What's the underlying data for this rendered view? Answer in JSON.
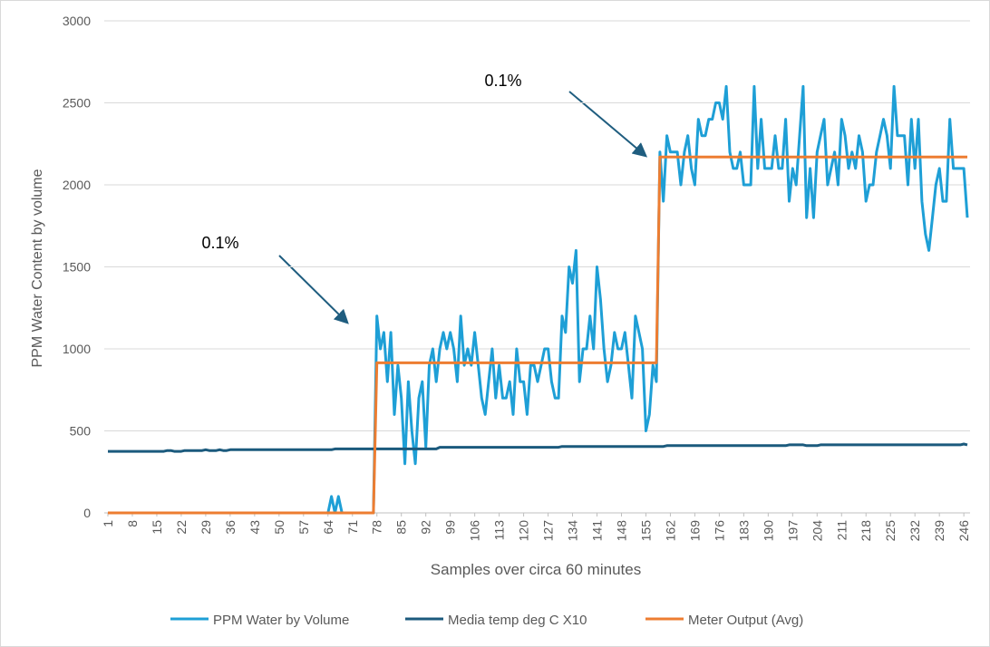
{
  "chart_data": {
    "type": "line",
    "x_label": "Samples over circa 60 minutes",
    "y_label": "PPM Water Content by volume",
    "xlim": [
      1,
      247
    ],
    "xticks": [
      1,
      8,
      15,
      22,
      29,
      36,
      43,
      50,
      57,
      64,
      71,
      78,
      85,
      92,
      99,
      106,
      113,
      120,
      127,
      134,
      141,
      148,
      155,
      162,
      169,
      176,
      183,
      190,
      197,
      204,
      211,
      218,
      225,
      232,
      239,
      246
    ],
    "ylim": [
      0,
      3000
    ],
    "yticks": [
      0,
      500,
      1000,
      1500,
      2000,
      2500,
      3000
    ],
    "grid": true,
    "legend": "bottom",
    "annotations": [
      {
        "text": "0.1%"
      },
      {
        "text": "0.1%"
      }
    ],
    "x": [
      1,
      2,
      3,
      4,
      5,
      6,
      7,
      8,
      9,
      10,
      11,
      12,
      13,
      14,
      15,
      16,
      17,
      18,
      19,
      20,
      21,
      22,
      23,
      24,
      25,
      26,
      27,
      28,
      29,
      30,
      31,
      32,
      33,
      34,
      35,
      36,
      37,
      38,
      39,
      40,
      41,
      42,
      43,
      44,
      45,
      46,
      47,
      48,
      49,
      50,
      51,
      52,
      53,
      54,
      55,
      56,
      57,
      58,
      59,
      60,
      61,
      62,
      63,
      64,
      65,
      66,
      67,
      68,
      69,
      70,
      71,
      72,
      73,
      74,
      75,
      76,
      77,
      78,
      79,
      80,
      81,
      82,
      83,
      84,
      85,
      86,
      87,
      88,
      89,
      90,
      91,
      92,
      93,
      94,
      95,
      96,
      97,
      98,
      99,
      100,
      101,
      102,
      103,
      104,
      105,
      106,
      107,
      108,
      109,
      110,
      111,
      112,
      113,
      114,
      115,
      116,
      117,
      118,
      119,
      120,
      121,
      122,
      123,
      124,
      125,
      126,
      127,
      128,
      129,
      130,
      131,
      132,
      133,
      134,
      135,
      136,
      137,
      138,
      139,
      140,
      141,
      142,
      143,
      144,
      145,
      146,
      147,
      148,
      149,
      150,
      151,
      152,
      153,
      154,
      155,
      156,
      157,
      158,
      159,
      160,
      161,
      162,
      163,
      164,
      165,
      166,
      167,
      168,
      169,
      170,
      171,
      172,
      173,
      174,
      175,
      176,
      177,
      178,
      179,
      180,
      181,
      182,
      183,
      184,
      185,
      186,
      187,
      188,
      189,
      190,
      191,
      192,
      193,
      194,
      195,
      196,
      197,
      198,
      199,
      200,
      201,
      202,
      203,
      204,
      205,
      206,
      207,
      208,
      209,
      210,
      211,
      212,
      213,
      214,
      215,
      216,
      217,
      218,
      219,
      220,
      221,
      222,
      223,
      224,
      225,
      226,
      227,
      228,
      229,
      230,
      231,
      232,
      233,
      234,
      235,
      236,
      237,
      238,
      239,
      240,
      241,
      242,
      243,
      244,
      245,
      246,
      247
    ],
    "series": [
      {
        "name": "PPM Water by Volume",
        "color": "#1e9fd6",
        "values": [
          0,
          0,
          0,
          0,
          0,
          0,
          0,
          0,
          0,
          0,
          0,
          0,
          0,
          0,
          0,
          0,
          0,
          0,
          0,
          0,
          0,
          0,
          0,
          0,
          0,
          0,
          0,
          0,
          0,
          0,
          0,
          0,
          0,
          0,
          0,
          0,
          0,
          0,
          0,
          0,
          0,
          0,
          0,
          0,
          0,
          0,
          0,
          0,
          0,
          0,
          0,
          0,
          0,
          0,
          0,
          0,
          0,
          0,
          0,
          0,
          0,
          0,
          0,
          0,
          100,
          0,
          100,
          0,
          0,
          0,
          0,
          0,
          0,
          0,
          0,
          0,
          0,
          1200,
          1000,
          1100,
          800,
          1100,
          600,
          900,
          700,
          300,
          800,
          500,
          300,
          700,
          800,
          400,
          900,
          1000,
          800,
          1000,
          1100,
          1000,
          1100,
          1000,
          800,
          1200,
          900,
          1000,
          900,
          1100,
          900,
          700,
          600,
          800,
          1000,
          700,
          900,
          700,
          700,
          800,
          600,
          1000,
          800,
          800,
          600,
          900,
          900,
          800,
          900,
          1000,
          1000,
          800,
          700,
          700,
          1200,
          1100,
          1500,
          1400,
          1600,
          800,
          1000,
          1000,
          1200,
          1000,
          1500,
          1300,
          1000,
          800,
          900,
          1100,
          1000,
          1000,
          1100,
          900,
          700,
          1200,
          1100,
          1000,
          500,
          600,
          900,
          800,
          2200,
          1900,
          2300,
          2200,
          2200,
          2200,
          2000,
          2200,
          2300,
          2100,
          2000,
          2400,
          2300,
          2300,
          2400,
          2400,
          2500,
          2500,
          2400,
          2600,
          2200,
          2100,
          2100,
          2200,
          2000,
          2000,
          2000,
          2600,
          2100,
          2400,
          2100,
          2100,
          2100,
          2300,
          2100,
          2100,
          2400,
          1900,
          2100,
          2000,
          2300,
          2600,
          1800,
          2100,
          1800,
          2200,
          2300,
          2400,
          2000,
          2100,
          2200,
          2000,
          2400,
          2300,
          2100,
          2200,
          2100,
          2300,
          2200,
          1900,
          2000,
          2000,
          2200,
          2300,
          2400,
          2300,
          2100,
          2600,
          2300,
          2300,
          2300,
          2000,
          2400,
          2100,
          2400,
          1900,
          1700,
          1600,
          1800,
          2000,
          2100,
          1900,
          1900,
          2400,
          2100,
          2100,
          2100,
          2100,
          1800
        ]
      },
      {
        "name": "Media temp deg C X10",
        "color": "#1b5a7d",
        "values": [
          375,
          375,
          375,
          375,
          375,
          375,
          375,
          375,
          375,
          375,
          375,
          375,
          375,
          375,
          375,
          375,
          375,
          380,
          380,
          375,
          375,
          375,
          380,
          380,
          380,
          380,
          380,
          380,
          385,
          380,
          380,
          380,
          385,
          380,
          380,
          385,
          385,
          385,
          385,
          385,
          385,
          385,
          385,
          385,
          385,
          385,
          385,
          385,
          385,
          385,
          385,
          385,
          385,
          385,
          385,
          385,
          385,
          385,
          385,
          385,
          385,
          385,
          385,
          385,
          385,
          390,
          390,
          390,
          390,
          390,
          390,
          390,
          390,
          390,
          390,
          390,
          390,
          390,
          390,
          390,
          390,
          390,
          390,
          390,
          390,
          390,
          390,
          390,
          390,
          390,
          390,
          390,
          390,
          390,
          390,
          400,
          400,
          400,
          400,
          400,
          400,
          400,
          400,
          400,
          400,
          400,
          400,
          400,
          400,
          400,
          400,
          400,
          400,
          400,
          400,
          400,
          400,
          400,
          400,
          400,
          400,
          400,
          400,
          400,
          400,
          400,
          400,
          400,
          400,
          400,
          405,
          405,
          405,
          405,
          405,
          405,
          405,
          405,
          405,
          405,
          405,
          405,
          405,
          405,
          405,
          405,
          405,
          405,
          405,
          405,
          405,
          405,
          405,
          405,
          405,
          405,
          405,
          405,
          405,
          405,
          410,
          410,
          410,
          410,
          410,
          410,
          410,
          410,
          410,
          410,
          410,
          410,
          410,
          410,
          410,
          410,
          410,
          410,
          410,
          410,
          410,
          410,
          410,
          410,
          410,
          410,
          410,
          410,
          410,
          410,
          410,
          410,
          410,
          410,
          410,
          415,
          415,
          415,
          415,
          415,
          410,
          410,
          410,
          410,
          415,
          415,
          415,
          415,
          415,
          415,
          415,
          415,
          415,
          415,
          415,
          415,
          415,
          415,
          415,
          415,
          415,
          415,
          415,
          415,
          415,
          415,
          415,
          415,
          415,
          415,
          415,
          415,
          415,
          415,
          415,
          415,
          415,
          415,
          415,
          415,
          415,
          415,
          415,
          415,
          415,
          420,
          415
        ]
      },
      {
        "name": "Meter Output (Avg)",
        "color": "#ed7d31",
        "values": [
          0,
          0,
          0,
          0,
          0,
          0,
          0,
          0,
          0,
          0,
          0,
          0,
          0,
          0,
          0,
          0,
          0,
          0,
          0,
          0,
          0,
          0,
          0,
          0,
          0,
          0,
          0,
          0,
          0,
          0,
          0,
          0,
          0,
          0,
          0,
          0,
          0,
          0,
          0,
          0,
          0,
          0,
          0,
          0,
          0,
          0,
          0,
          0,
          0,
          0,
          0,
          0,
          0,
          0,
          0,
          0,
          0,
          0,
          0,
          0,
          0,
          0,
          0,
          0,
          0,
          0,
          0,
          0,
          0,
          0,
          0,
          0,
          0,
          0,
          0,
          0,
          0,
          915,
          915,
          915,
          915,
          915,
          915,
          915,
          915,
          915,
          915,
          915,
          915,
          915,
          915,
          915,
          915,
          915,
          915,
          915,
          915,
          915,
          915,
          915,
          915,
          915,
          915,
          915,
          915,
          915,
          915,
          915,
          915,
          915,
          915,
          915,
          915,
          915,
          915,
          915,
          915,
          915,
          915,
          915,
          915,
          915,
          915,
          915,
          915,
          915,
          915,
          915,
          915,
          915,
          915,
          915,
          915,
          915,
          915,
          915,
          915,
          915,
          915,
          915,
          915,
          915,
          915,
          915,
          915,
          915,
          915,
          915,
          915,
          915,
          915,
          915,
          915,
          915,
          915,
          915,
          915,
          915,
          2170,
          2170,
          2170,
          2170,
          2170,
          2170,
          2170,
          2170,
          2170,
          2170,
          2170,
          2170,
          2170,
          2170,
          2170,
          2170,
          2170,
          2170,
          2170,
          2170,
          2170,
          2170,
          2170,
          2170,
          2170,
          2170,
          2170,
          2170,
          2170,
          2170,
          2170,
          2170,
          2170,
          2170,
          2170,
          2170,
          2170,
          2170,
          2170,
          2170,
          2170,
          2170,
          2170,
          2170,
          2170,
          2170,
          2170,
          2170,
          2170,
          2170,
          2170,
          2170,
          2170,
          2170,
          2170,
          2170,
          2170,
          2170,
          2170,
          2170,
          2170,
          2170,
          2170,
          2170,
          2170,
          2170,
          2170,
          2170,
          2170,
          2170,
          2170,
          2170,
          2170,
          2170,
          2170,
          2170,
          2170,
          2170,
          2170,
          2170,
          2170,
          2170,
          2170,
          2170,
          2170,
          2170,
          2170,
          2170,
          2170
        ]
      }
    ]
  }
}
